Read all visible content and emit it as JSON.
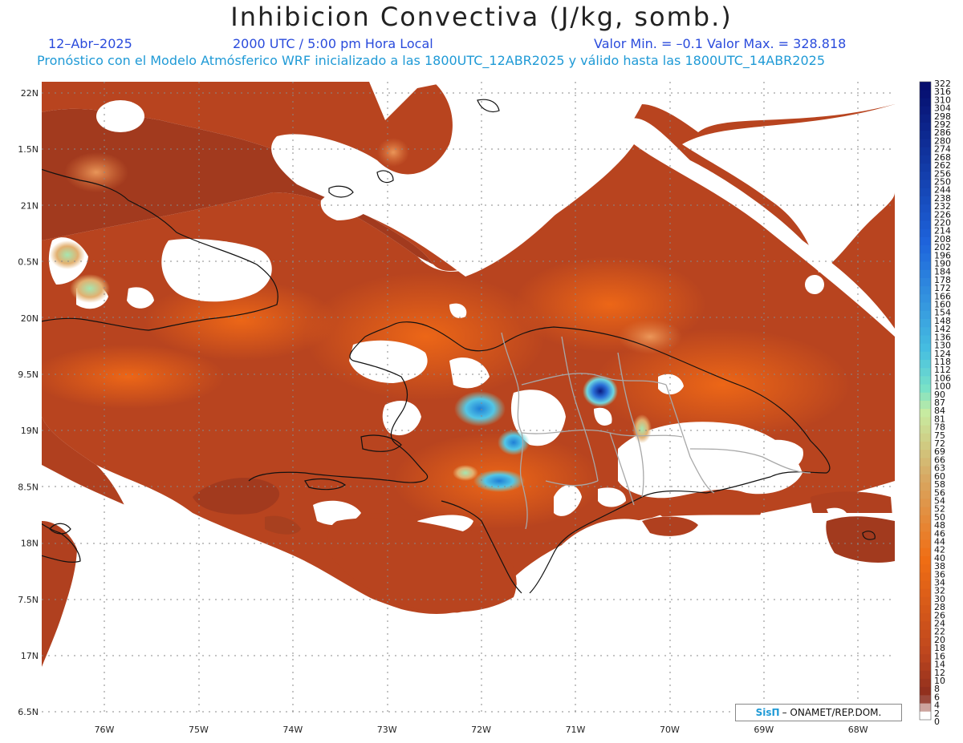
{
  "header": {
    "title": "Inhibicion Convectiva (J/kg, somb.)",
    "date": "12–Abr–2025",
    "time": "2000 UTC / 5:00 pm Hora Local",
    "minmax": "Valor Min. = –0.1  Valor Max. = 328.818",
    "description": "Pronóstico con el Modelo Atmósferico WRF inicializado a las 1800UTC_12ABR2025 y válido hasta las  1800UTC_14ABR2025"
  },
  "axes": {
    "lat_labels": [
      "22N",
      "1.5N",
      "21N",
      "0.5N",
      "20N",
      "9.5N",
      "19N",
      "8.5N",
      "18N",
      "7.5N",
      "17N",
      "6.5N"
    ],
    "lon_labels": [
      "76W",
      "75W",
      "74W",
      "73W",
      "72W",
      "71W",
      "70W",
      "69W",
      "68W"
    ]
  },
  "colorbar": {
    "labels": [
      "322",
      "316",
      "310",
      "304",
      "298",
      "292",
      "286",
      "280",
      "274",
      "268",
      "262",
      "256",
      "250",
      "244",
      "238",
      "232",
      "226",
      "220",
      "214",
      "208",
      "202",
      "196",
      "190",
      "184",
      "178",
      "172",
      "166",
      "160",
      "154",
      "148",
      "142",
      "136",
      "130",
      "124",
      "118",
      "112",
      "106",
      "100",
      "90",
      "87",
      "84",
      "81",
      "78",
      "75",
      "72",
      "69",
      "66",
      "63",
      "60",
      "58",
      "56",
      "54",
      "52",
      "50",
      "48",
      "46",
      "44",
      "42",
      "40",
      "38",
      "36",
      "34",
      "32",
      "30",
      "28",
      "26",
      "24",
      "22",
      "20",
      "18",
      "16",
      "14",
      "12",
      "10",
      "8",
      "6",
      "4",
      "2",
      "0"
    ]
  },
  "credit": {
    "brand": "SisΠ",
    "text": "– ONAMET/REP.DOM."
  },
  "colors": {
    "field_base": "#b8441f",
    "field_dark": "#8e3020",
    "field_light": "#e55a18",
    "cin_high": "#35a8e0",
    "cin_max": "#0a1a80",
    "coastline": "#111111",
    "borders": "#a8a8a8",
    "grid": "#888888"
  }
}
